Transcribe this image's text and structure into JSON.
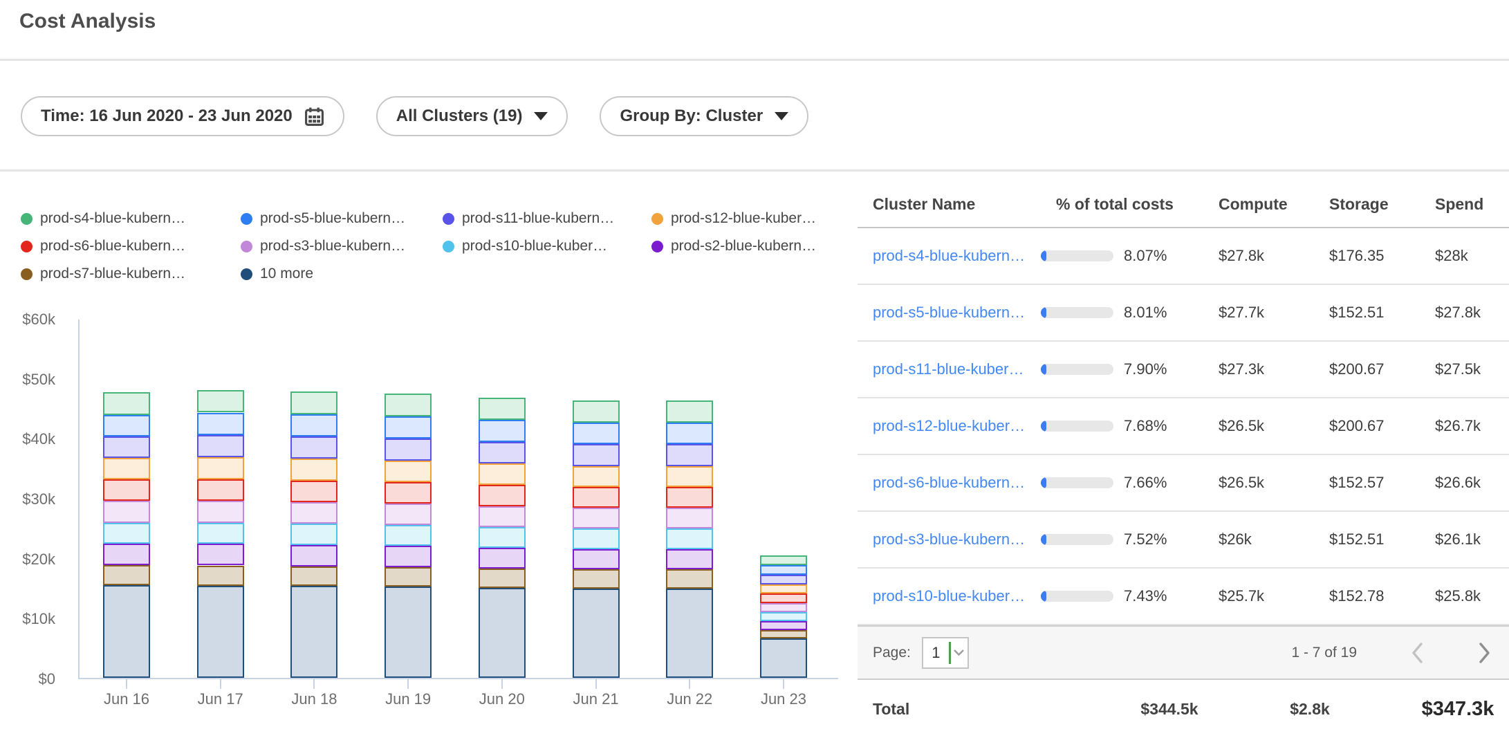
{
  "header": {
    "title": "Cost Analysis"
  },
  "filters": {
    "time_label": "Time: 16 Jun 2020 - 23 Jun 2020",
    "clusters_label": "All Clusters (19)",
    "group_by_label": "Group By: Cluster"
  },
  "colors": {
    "link_blue": "#4289f5",
    "progress_fill": "#3b7df0",
    "progress_track": "#e7e7e7",
    "axis": "#c9d3e6",
    "divider": "#e4e4e4",
    "select_caret_green": "#4e9a4e"
  },
  "legend": {
    "items": [
      {
        "label": "prod-s4-blue-kubern…",
        "color": "#45b578"
      },
      {
        "label": "prod-s5-blue-kubern…",
        "color": "#2f7df5"
      },
      {
        "label": "prod-s11-blue-kubern…",
        "color": "#5a53e8"
      },
      {
        "label": "prod-s12-blue-kuber…",
        "color": "#f1a23b"
      },
      {
        "label": "prod-s6-blue-kubern…",
        "color": "#e3261c"
      },
      {
        "label": "prod-s3-blue-kubern…",
        "color": "#c287d8"
      },
      {
        "label": "prod-s10-blue-kuber…",
        "color": "#50c2eb"
      },
      {
        "label": "prod-s2-blue-kubern…",
        "color": "#7b1ccf"
      },
      {
        "label": "prod-s7-blue-kubern…",
        "color": "#8a5e1e"
      },
      {
        "label": "10 more",
        "color": "#1e4e79"
      }
    ]
  },
  "chart_data": {
    "type": "bar",
    "stacked": true,
    "title": "",
    "xlabel": "",
    "ylabel": "",
    "values_unit": "USD thousands per day",
    "ylim": [
      0,
      60
    ],
    "ytick_labels": [
      "$0",
      "$10k",
      "$20k",
      "$30k",
      "$40k",
      "$50k",
      "$60k"
    ],
    "x": [
      "Jun 16",
      "Jun 17",
      "Jun 18",
      "Jun 19",
      "Jun 20",
      "Jun 21",
      "Jun 22",
      "Jun 23"
    ],
    "legend_position": "top",
    "grid": false,
    "series": [
      {
        "name": "prod-s4-blue-kubern…",
        "color": "#45b578",
        "fill": "#dcf2e5",
        "values": [
          3.8,
          3.8,
          3.8,
          3.8,
          3.75,
          3.7,
          3.7,
          1.65
        ]
      },
      {
        "name": "prod-s5-blue-kubern…",
        "color": "#2f7df5",
        "fill": "#dbe8fd",
        "values": [
          3.6,
          3.75,
          3.75,
          3.7,
          3.65,
          3.6,
          3.65,
          1.6
        ]
      },
      {
        "name": "prod-s11-blue-kubern…",
        "color": "#5a53e8",
        "fill": "#dedcfa",
        "values": [
          3.55,
          3.7,
          3.7,
          3.65,
          3.6,
          3.6,
          3.6,
          1.6
        ]
      },
      {
        "name": "prod-s12-blue-kuber…",
        "color": "#f1a23b",
        "fill": "#fceedb",
        "values": [
          3.6,
          3.65,
          3.65,
          3.6,
          3.55,
          3.5,
          3.5,
          1.55
        ]
      },
      {
        "name": "prod-s6-blue-kubern…",
        "color": "#e3261c",
        "fill": "#fbdbd8",
        "values": [
          3.6,
          3.65,
          3.6,
          3.6,
          3.55,
          3.5,
          3.5,
          1.55
        ]
      },
      {
        "name": "prod-s3-blue-kubern…",
        "color": "#c287d8",
        "fill": "#f3e6f8",
        "values": [
          3.6,
          3.6,
          3.6,
          3.55,
          3.5,
          3.45,
          3.45,
          1.5
        ]
      },
      {
        "name": "prod-s10-blue-kuber…",
        "color": "#50c2eb",
        "fill": "#def5fc",
        "values": [
          3.5,
          3.55,
          3.55,
          3.5,
          3.45,
          3.4,
          3.4,
          1.5
        ]
      },
      {
        "name": "prod-s2-blue-kubern…",
        "color": "#7b1ccf",
        "fill": "#e8d6f7",
        "values": [
          3.6,
          3.6,
          3.55,
          3.5,
          3.45,
          3.4,
          3.4,
          1.5
        ]
      },
      {
        "name": "prod-s7-blue-kubern…",
        "color": "#8a5e1e",
        "fill": "#e3d9c8",
        "values": [
          3.3,
          3.35,
          3.3,
          3.3,
          3.25,
          3.2,
          3.2,
          1.4
        ]
      },
      {
        "name": "10 more",
        "color": "#1e4e79",
        "fill": "#cfdae6",
        "values": [
          15.5,
          15.4,
          15.3,
          15.2,
          15.0,
          14.9,
          14.9,
          6.6
        ]
      }
    ]
  },
  "table": {
    "columns": [
      "Cluster Name",
      "% of total costs",
      "Compute",
      "Storage",
      "Spend"
    ],
    "rows": [
      {
        "name": "prod-s4-blue-kubern…",
        "pct": "8.07%",
        "pct_value": 8.07,
        "compute": "$27.8k",
        "storage": "$176.35",
        "spend": "$28k"
      },
      {
        "name": "prod-s5-blue-kubern…",
        "pct": "8.01%",
        "pct_value": 8.01,
        "compute": "$27.7k",
        "storage": "$152.51",
        "spend": "$27.8k"
      },
      {
        "name": "prod-s11-blue-kuber…",
        "pct": "7.90%",
        "pct_value": 7.9,
        "compute": "$27.3k",
        "storage": "$200.67",
        "spend": "$27.5k"
      },
      {
        "name": "prod-s12-blue-kuber…",
        "pct": "7.68%",
        "pct_value": 7.68,
        "compute": "$26.5k",
        "storage": "$200.67",
        "spend": "$26.7k"
      },
      {
        "name": "prod-s6-blue-kubern…",
        "pct": "7.66%",
        "pct_value": 7.66,
        "compute": "$26.5k",
        "storage": "$152.57",
        "spend": "$26.6k"
      },
      {
        "name": "prod-s3-blue-kubern…",
        "pct": "7.52%",
        "pct_value": 7.52,
        "compute": "$26k",
        "storage": "$152.51",
        "spend": "$26.1k"
      },
      {
        "name": "prod-s10-blue-kuber…",
        "pct": "7.43%",
        "pct_value": 7.43,
        "compute": "$25.7k",
        "storage": "$152.78",
        "spend": "$25.8k"
      }
    ],
    "pagination": {
      "label": "Page:",
      "page": "1",
      "range": "1 - 7 of 19"
    },
    "total": {
      "label": "Total",
      "compute": "$344.5k",
      "storage": "$2.8k",
      "spend": "$347.3k"
    }
  }
}
